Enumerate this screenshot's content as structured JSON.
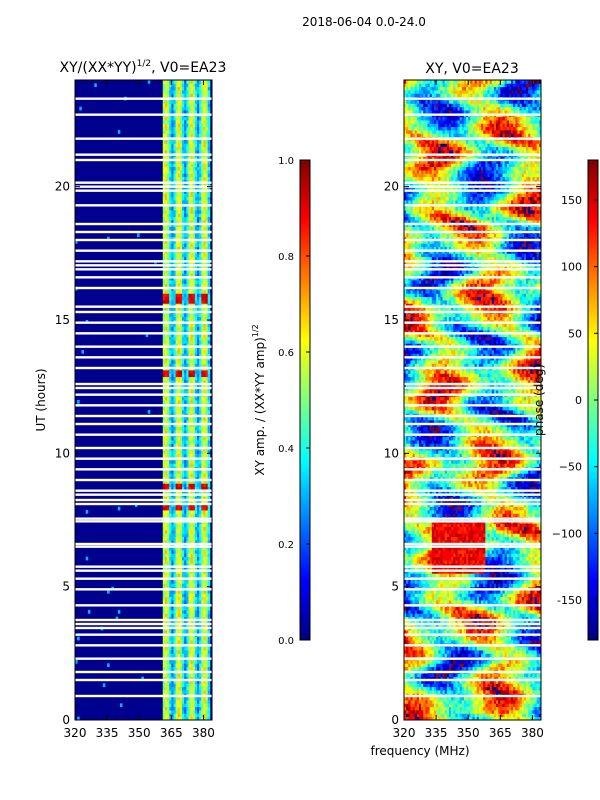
{
  "figure": {
    "suptitle": "2018-06-04 0.0-24.0",
    "shared_xlabel": "frequency (MHz)"
  },
  "chart_data": [
    {
      "type": "heatmap",
      "title_text": "XY/(XX*YY)",
      "title_sup": "1/2",
      "title_rest": ", V0=EA23",
      "xlabel": "",
      "ylabel": "UT (hours)",
      "xlim": [
        320,
        384
      ],
      "ylim": [
        0,
        24
      ],
      "xticks": [
        320,
        335,
        350,
        365,
        380
      ],
      "yticks": [
        0,
        5,
        10,
        15,
        20
      ],
      "colorbar": {
        "label_text": "XY amp. / (XX*YY amp)",
        "label_sup": "1/2",
        "range": [
          0.0,
          1.0
        ],
        "ticks": [
          "0.0",
          "0.2",
          "0.4",
          "0.6",
          "0.8",
          "1.0"
        ],
        "colormap": "jet"
      },
      "description": "amplitude ratio, mostly near 0 below 362 MHz, elevated 362-382 MHz, bright bursts near 8, 8.8, 13, 15.8 h"
    },
    {
      "type": "heatmap",
      "title_text": "XY, V0=EA23",
      "xlabel": "frequency (MHz)",
      "ylabel": "",
      "xlim": [
        320,
        384
      ],
      "ylim": [
        0,
        24
      ],
      "xticks": [
        320,
        335,
        350,
        365,
        380
      ],
      "yticks": [
        0,
        5,
        10,
        15,
        20
      ],
      "colorbar": {
        "label_text": "phase (deg)",
        "range": [
          -180,
          180
        ],
        "ticks": [
          "-150",
          "−100",
          "−50",
          "0",
          "50",
          "100",
          "150"
        ],
        "colormap": "jet"
      },
      "description": "XY phase in degrees, wrapping across full range"
    }
  ],
  "flag_rows_hours": [
    0.9,
    1.5,
    1.8,
    2.3,
    2.8,
    3.2,
    3.45,
    3.6,
    3.75,
    4.3,
    4.9,
    5.3,
    5.6,
    5.75,
    6.5,
    6.6,
    7.45,
    7.55,
    8.1,
    8.25,
    8.45,
    8.6,
    9.0,
    9.4,
    9.8,
    10.2,
    10.7,
    11.1,
    11.4,
    11.8,
    12.2,
    12.45,
    12.6,
    13.2,
    13.6,
    14.0,
    14.5,
    14.9,
    15.3,
    15.5,
    16.2,
    16.6,
    16.9,
    17.05,
    17.2,
    17.6,
    18.0,
    18.3,
    18.6,
    19.3,
    19.85,
    20.0,
    20.15,
    21.0,
    21.2,
    21.8,
    22.7,
    23.3
  ]
}
